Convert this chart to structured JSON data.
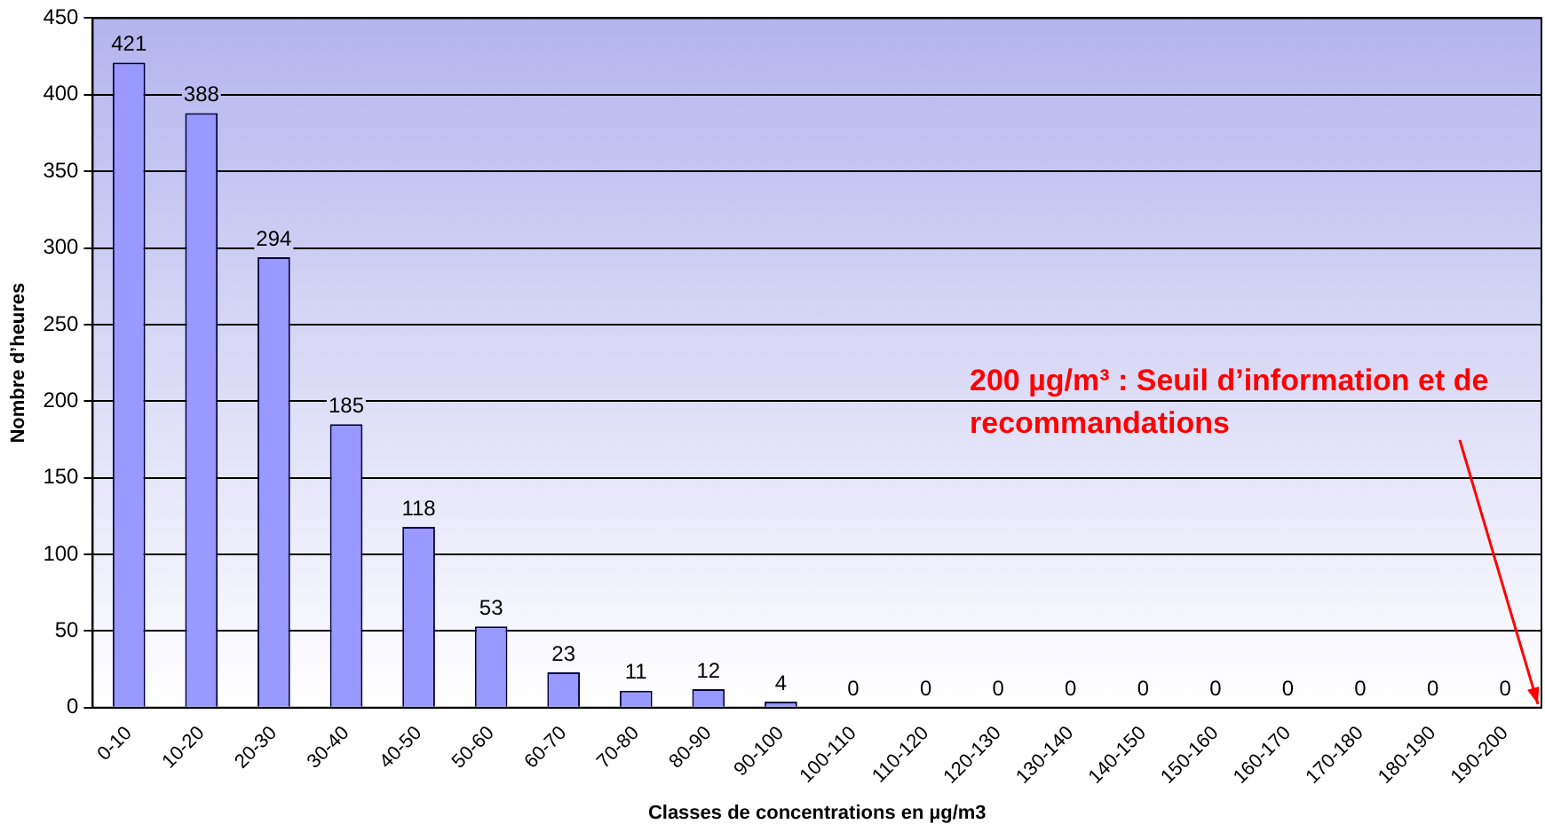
{
  "chart_data": {
    "type": "bar",
    "categories": [
      "0-10",
      "10-20",
      "20-30",
      "30-40",
      "40-50",
      "50-60",
      "60-70",
      "70-80",
      "80-90",
      "90-100",
      "100-110",
      "110-120",
      "120-130",
      "130-140",
      "140-150",
      "150-160",
      "160-170",
      "170-180",
      "180-190",
      "190-200"
    ],
    "values": [
      421,
      388,
      294,
      185,
      118,
      53,
      23,
      11,
      12,
      4,
      0,
      0,
      0,
      0,
      0,
      0,
      0,
      0,
      0,
      0
    ],
    "color": "#9999ff",
    "xlabel": "Classes de concentrations en µg/m3",
    "ylabel": "Nombre d’heures",
    "ylim": [
      0,
      450
    ],
    "yticks": [
      0,
      50,
      100,
      150,
      200,
      250,
      300,
      350,
      400,
      450
    ],
    "grid": "y",
    "data_labels": true,
    "annotations": [
      "200 µg/m³ : Seuil d’information et de recommandations"
    ]
  }
}
